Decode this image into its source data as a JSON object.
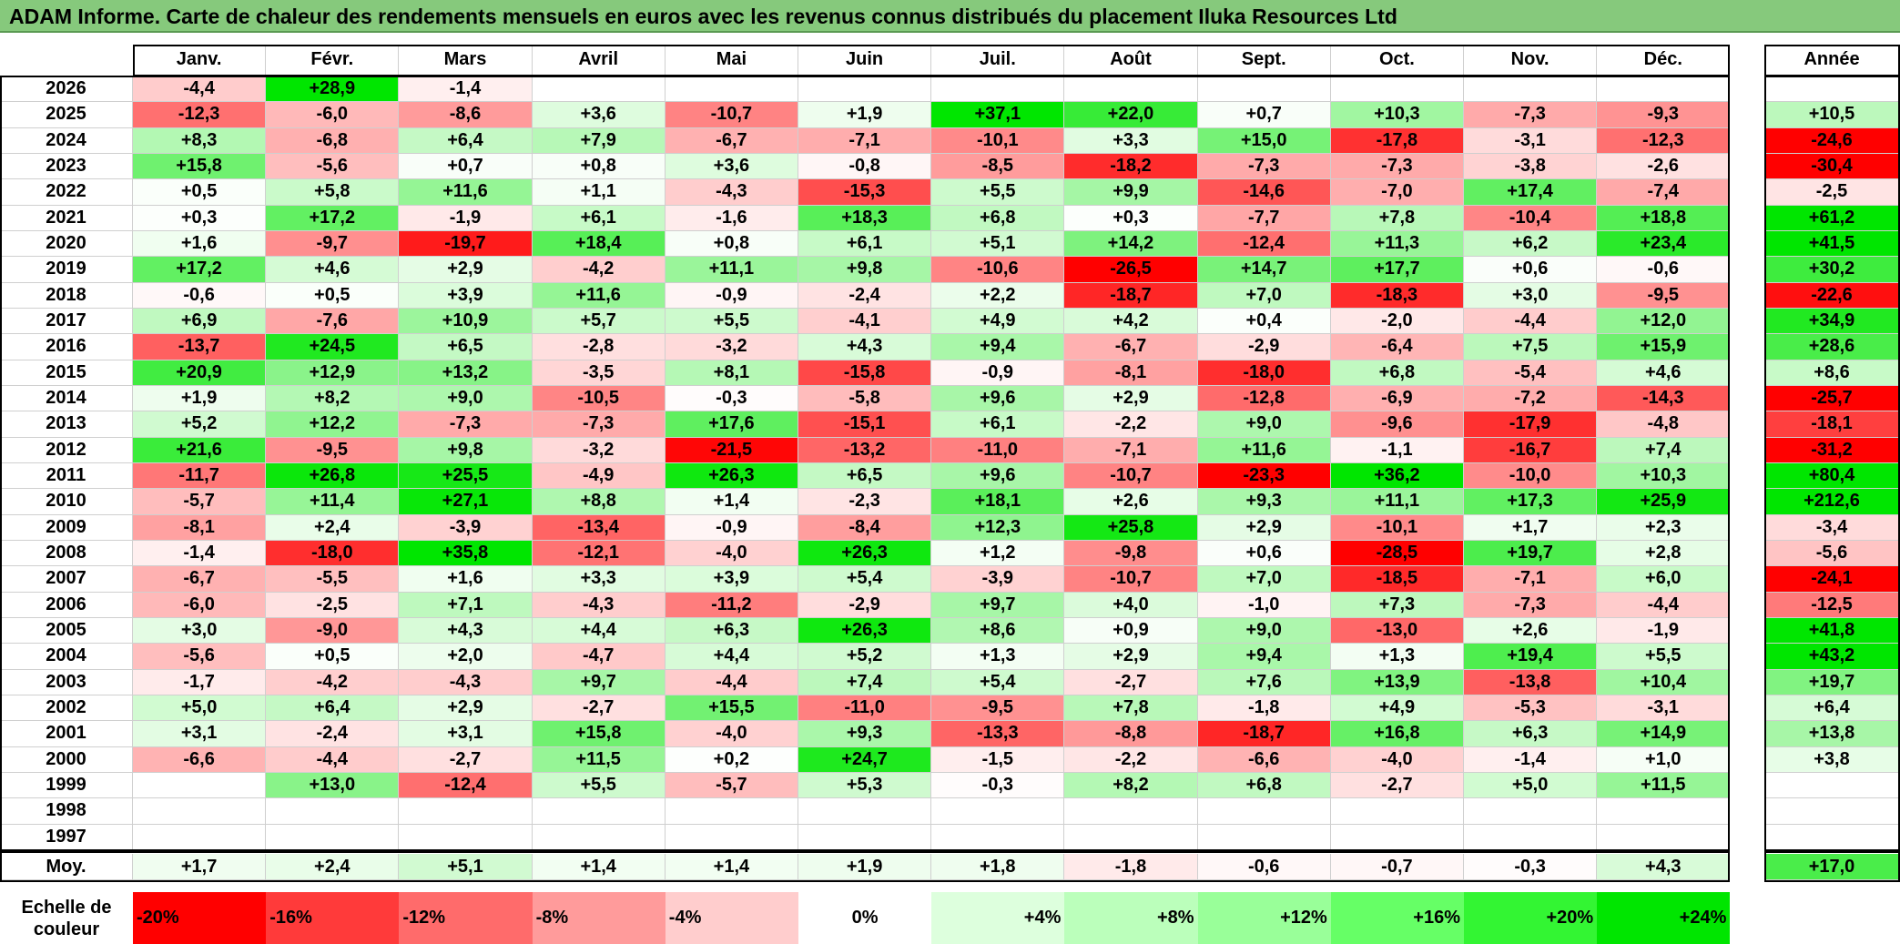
{
  "title": "ADAM Informe. Carte de chaleur des rendements mensuels en euros avec les revenus connus distribués du placement Iluka Resources Ltd",
  "chart_data": {
    "type": "heatmap",
    "months": [
      "Janv.",
      "Févr.",
      "Mars",
      "Avril",
      "Mai",
      "Juin",
      "Juil.",
      "Août",
      "Sept.",
      "Oct.",
      "Nov.",
      "Déc."
    ],
    "year_header": "Année",
    "rows": [
      {
        "year": "2026",
        "values": [
          -4.4,
          28.9,
          -1.4,
          null,
          null,
          null,
          null,
          null,
          null,
          null,
          null,
          null
        ],
        "labels": [
          "-4,4",
          "+28,9",
          "-1,4",
          "",
          "",
          "",
          "",
          "",
          "",
          "",
          "",
          ""
        ],
        "annual": null,
        "annual_label": ""
      },
      {
        "year": "2025",
        "values": [
          -12.3,
          -6.0,
          -8.6,
          3.6,
          -10.7,
          1.9,
          37.1,
          22.0,
          0.7,
          10.3,
          -7.3,
          -9.3
        ],
        "labels": [
          "-12,3",
          "-6,0",
          "-8,6",
          "+3,6",
          "-10,7",
          "+1,9",
          "+37,1",
          "+22,0",
          "+0,7",
          "+10,3",
          "-7,3",
          "-9,3"
        ],
        "annual": 10.5,
        "annual_label": "+10,5"
      },
      {
        "year": "2024",
        "values": [
          8.3,
          -6.8,
          6.4,
          7.9,
          -6.7,
          -7.1,
          -10.1,
          3.3,
          15.0,
          -17.8,
          -3.1,
          -12.3
        ],
        "labels": [
          "+8,3",
          "-6,8",
          "+6,4",
          "+7,9",
          "-6,7",
          "-7,1",
          "-10,1",
          "+3,3",
          "+15,0",
          "-17,8",
          "-3,1",
          "-12,3"
        ],
        "annual": -24.6,
        "annual_label": "-24,6"
      },
      {
        "year": "2023",
        "values": [
          15.8,
          -5.6,
          0.7,
          0.8,
          3.6,
          -0.8,
          -8.5,
          -18.2,
          -7.3,
          -7.3,
          -3.8,
          -2.6
        ],
        "labels": [
          "+15,8",
          "-5,6",
          "+0,7",
          "+0,8",
          "+3,6",
          "-0,8",
          "-8,5",
          "-18,2",
          "-7,3",
          "-7,3",
          "-3,8",
          "-2,6"
        ],
        "annual": -30.4,
        "annual_label": "-30,4"
      },
      {
        "year": "2022",
        "values": [
          0.5,
          5.8,
          11.6,
          1.1,
          -4.3,
          -15.3,
          5.5,
          9.9,
          -14.6,
          -7.0,
          17.4,
          -7.4
        ],
        "labels": [
          "+0,5",
          "+5,8",
          "+11,6",
          "+1,1",
          "-4,3",
          "-15,3",
          "+5,5",
          "+9,9",
          "-14,6",
          "-7,0",
          "+17,4",
          "-7,4"
        ],
        "annual": -2.5,
        "annual_label": "-2,5"
      },
      {
        "year": "2021",
        "values": [
          0.3,
          17.2,
          -1.9,
          6.1,
          -1.6,
          18.3,
          6.8,
          0.3,
          -7.7,
          7.8,
          -10.4,
          18.8
        ],
        "labels": [
          "+0,3",
          "+17,2",
          "-1,9",
          "+6,1",
          "-1,6",
          "+18,3",
          "+6,8",
          "+0,3",
          "-7,7",
          "+7,8",
          "-10,4",
          "+18,8"
        ],
        "annual": 61.2,
        "annual_label": "+61,2"
      },
      {
        "year": "2020",
        "values": [
          1.6,
          -9.7,
          -19.7,
          18.4,
          0.8,
          6.1,
          5.1,
          14.2,
          -12.4,
          11.3,
          6.2,
          23.4
        ],
        "labels": [
          "+1,6",
          "-9,7",
          "-19,7",
          "+18,4",
          "+0,8",
          "+6,1",
          "+5,1",
          "+14,2",
          "-12,4",
          "+11,3",
          "+6,2",
          "+23,4"
        ],
        "annual": 41.5,
        "annual_label": "+41,5"
      },
      {
        "year": "2019",
        "values": [
          17.2,
          4.6,
          2.9,
          -4.2,
          11.1,
          9.8,
          -10.6,
          -26.5,
          14.7,
          17.7,
          0.6,
          -0.6
        ],
        "labels": [
          "+17,2",
          "+4,6",
          "+2,9",
          "-4,2",
          "+11,1",
          "+9,8",
          "-10,6",
          "-26,5",
          "+14,7",
          "+17,7",
          "+0,6",
          "-0,6"
        ],
        "annual": 30.2,
        "annual_label": "+30,2"
      },
      {
        "year": "2018",
        "values": [
          -0.6,
          0.5,
          3.9,
          11.6,
          -0.9,
          -2.4,
          2.2,
          -18.7,
          7.0,
          -18.3,
          3.0,
          -9.5
        ],
        "labels": [
          "-0,6",
          "+0,5",
          "+3,9",
          "+11,6",
          "-0,9",
          "-2,4",
          "+2,2",
          "-18,7",
          "+7,0",
          "-18,3",
          "+3,0",
          "-9,5"
        ],
        "annual": -22.6,
        "annual_label": "-22,6"
      },
      {
        "year": "2017",
        "values": [
          6.9,
          -7.6,
          10.9,
          5.7,
          5.5,
          -4.1,
          4.9,
          4.2,
          0.4,
          -2.0,
          -4.4,
          12.0
        ],
        "labels": [
          "+6,9",
          "-7,6",
          "+10,9",
          "+5,7",
          "+5,5",
          "-4,1",
          "+4,9",
          "+4,2",
          "+0,4",
          "-2,0",
          "-4,4",
          "+12,0"
        ],
        "annual": 34.9,
        "annual_label": "+34,9"
      },
      {
        "year": "2016",
        "values": [
          -13.7,
          24.5,
          6.5,
          -2.8,
          -3.2,
          4.3,
          9.4,
          -6.7,
          -2.9,
          -6.4,
          7.5,
          15.9
        ],
        "labels": [
          "-13,7",
          "+24,5",
          "+6,5",
          "-2,8",
          "-3,2",
          "+4,3",
          "+9,4",
          "-6,7",
          "-2,9",
          "-6,4",
          "+7,5",
          "+15,9"
        ],
        "annual": 28.6,
        "annual_label": "+28,6"
      },
      {
        "year": "2015",
        "values": [
          20.9,
          12.9,
          13.2,
          -3.5,
          8.1,
          -15.8,
          -0.9,
          -8.1,
          -18.0,
          6.8,
          -5.4,
          4.6
        ],
        "labels": [
          "+20,9",
          "+12,9",
          "+13,2",
          "-3,5",
          "+8,1",
          "-15,8",
          "-0,9",
          "-8,1",
          "-18,0",
          "+6,8",
          "-5,4",
          "+4,6"
        ],
        "annual": 8.6,
        "annual_label": "+8,6"
      },
      {
        "year": "2014",
        "values": [
          1.9,
          8.2,
          9.0,
          -10.5,
          -0.3,
          -5.8,
          9.6,
          2.9,
          -12.8,
          -6.9,
          -7.2,
          -14.3
        ],
        "labels": [
          "+1,9",
          "+8,2",
          "+9,0",
          "-10,5",
          "-0,3",
          "-5,8",
          "+9,6",
          "+2,9",
          "-12,8",
          "-6,9",
          "-7,2",
          "-14,3"
        ],
        "annual": -25.7,
        "annual_label": "-25,7"
      },
      {
        "year": "2013",
        "values": [
          5.2,
          12.2,
          -7.3,
          -7.3,
          17.6,
          -15.1,
          6.1,
          -2.2,
          9.0,
          -9.6,
          -17.9,
          -4.8
        ],
        "labels": [
          "+5,2",
          "+12,2",
          "-7,3",
          "-7,3",
          "+17,6",
          "-15,1",
          "+6,1",
          "-2,2",
          "+9,0",
          "-9,6",
          "-17,9",
          "-4,8"
        ],
        "annual": -18.1,
        "annual_label": "-18,1"
      },
      {
        "year": "2012",
        "values": [
          21.6,
          -9.5,
          9.8,
          -3.2,
          -21.5,
          -13.2,
          -11.0,
          -7.1,
          11.6,
          -1.1,
          -16.7,
          7.4
        ],
        "labels": [
          "+21,6",
          "-9,5",
          "+9,8",
          "-3,2",
          "-21,5",
          "-13,2",
          "-11,0",
          "-7,1",
          "+11,6",
          "-1,1",
          "-16,7",
          "+7,4"
        ],
        "annual": -31.2,
        "annual_label": "-31,2"
      },
      {
        "year": "2011",
        "values": [
          -11.7,
          26.8,
          25.5,
          -4.9,
          26.3,
          6.5,
          9.6,
          -10.7,
          -23.3,
          36.2,
          -10.0,
          10.3
        ],
        "labels": [
          "-11,7",
          "+26,8",
          "+25,5",
          "-4,9",
          "+26,3",
          "+6,5",
          "+9,6",
          "-10,7",
          "-23,3",
          "+36,2",
          "-10,0",
          "+10,3"
        ],
        "annual": 80.4,
        "annual_label": "+80,4"
      },
      {
        "year": "2010",
        "values": [
          -5.7,
          11.4,
          27.1,
          8.8,
          1.4,
          -2.3,
          18.1,
          2.6,
          9.3,
          11.1,
          17.3,
          25.9
        ],
        "labels": [
          "-5,7",
          "+11,4",
          "+27,1",
          "+8,8",
          "+1,4",
          "-2,3",
          "+18,1",
          "+2,6",
          "+9,3",
          "+11,1",
          "+17,3",
          "+25,9"
        ],
        "annual": 212.6,
        "annual_label": "+212,6"
      },
      {
        "year": "2009",
        "values": [
          -8.1,
          2.4,
          -3.9,
          -13.4,
          -0.9,
          -8.4,
          12.3,
          25.8,
          2.9,
          -10.1,
          1.7,
          2.3
        ],
        "labels": [
          "-8,1",
          "+2,4",
          "-3,9",
          "-13,4",
          "-0,9",
          "-8,4",
          "+12,3",
          "+25,8",
          "+2,9",
          "-10,1",
          "+1,7",
          "+2,3"
        ],
        "annual": -3.4,
        "annual_label": "-3,4"
      },
      {
        "year": "2008",
        "values": [
          -1.4,
          -18.0,
          35.8,
          -12.1,
          -4.0,
          26.3,
          1.2,
          -9.8,
          0.6,
          -28.5,
          19.7,
          2.8
        ],
        "labels": [
          "-1,4",
          "-18,0",
          "+35,8",
          "-12,1",
          "-4,0",
          "+26,3",
          "+1,2",
          "-9,8",
          "+0,6",
          "-28,5",
          "+19,7",
          "+2,8"
        ],
        "annual": -5.6,
        "annual_label": "-5,6"
      },
      {
        "year": "2007",
        "values": [
          -6.7,
          -5.5,
          1.6,
          3.3,
          3.9,
          5.4,
          -3.9,
          -10.7,
          7.0,
          -18.5,
          -7.1,
          6.0
        ],
        "labels": [
          "-6,7",
          "-5,5",
          "+1,6",
          "+3,3",
          "+3,9",
          "+5,4",
          "-3,9",
          "-10,7",
          "+7,0",
          "-18,5",
          "-7,1",
          "+6,0"
        ],
        "annual": -24.1,
        "annual_label": "-24,1"
      },
      {
        "year": "2006",
        "values": [
          -6.0,
          -2.5,
          7.1,
          -4.3,
          -11.2,
          -2.9,
          9.7,
          4.0,
          -1.0,
          7.3,
          -7.3,
          -4.4
        ],
        "labels": [
          "-6,0",
          "-2,5",
          "+7,1",
          "-4,3",
          "-11,2",
          "-2,9",
          "+9,7",
          "+4,0",
          "-1,0",
          "+7,3",
          "-7,3",
          "-4,4"
        ],
        "annual": -12.5,
        "annual_label": "-12,5"
      },
      {
        "year": "2005",
        "values": [
          3.0,
          -9.0,
          4.3,
          4.4,
          6.3,
          26.3,
          8.6,
          0.9,
          9.0,
          -13.0,
          2.6,
          -1.9
        ],
        "labels": [
          "+3,0",
          "-9,0",
          "+4,3",
          "+4,4",
          "+6,3",
          "+26,3",
          "+8,6",
          "+0,9",
          "+9,0",
          "-13,0",
          "+2,6",
          "-1,9"
        ],
        "annual": 41.8,
        "annual_label": "+41,8"
      },
      {
        "year": "2004",
        "values": [
          -5.6,
          0.5,
          2.0,
          -4.7,
          4.4,
          5.2,
          1.3,
          2.9,
          9.4,
          1.3,
          19.4,
          5.5
        ],
        "labels": [
          "-5,6",
          "+0,5",
          "+2,0",
          "-4,7",
          "+4,4",
          "+5,2",
          "+1,3",
          "+2,9",
          "+9,4",
          "+1,3",
          "+19,4",
          "+5,5"
        ],
        "annual": 43.2,
        "annual_label": "+43,2"
      },
      {
        "year": "2003",
        "values": [
          -1.7,
          -4.2,
          -4.3,
          9.7,
          -4.4,
          7.4,
          5.4,
          -2.7,
          7.6,
          13.9,
          -13.8,
          10.4
        ],
        "labels": [
          "-1,7",
          "-4,2",
          "-4,3",
          "+9,7",
          "-4,4",
          "+7,4",
          "+5,4",
          "-2,7",
          "+7,6",
          "+13,9",
          "-13,8",
          "+10,4"
        ],
        "annual": 19.7,
        "annual_label": "+19,7"
      },
      {
        "year": "2002",
        "values": [
          5.0,
          6.4,
          2.9,
          -2.7,
          15.5,
          -11.0,
          -9.5,
          7.8,
          -1.8,
          4.9,
          -5.3,
          -3.1
        ],
        "labels": [
          "+5,0",
          "+6,4",
          "+2,9",
          "-2,7",
          "+15,5",
          "-11,0",
          "-9,5",
          "+7,8",
          "-1,8",
          "+4,9",
          "-5,3",
          "-3,1"
        ],
        "annual": 6.4,
        "annual_label": "+6,4"
      },
      {
        "year": "2001",
        "values": [
          3.1,
          -2.4,
          3.1,
          15.8,
          -4.0,
          9.3,
          -13.3,
          -8.8,
          -18.7,
          16.8,
          6.3,
          14.9
        ],
        "labels": [
          "+3,1",
          "-2,4",
          "+3,1",
          "+15,8",
          "-4,0",
          "+9,3",
          "-13,3",
          "-8,8",
          "-18,7",
          "+16,8",
          "+6,3",
          "+14,9"
        ],
        "annual": 13.8,
        "annual_label": "+13,8"
      },
      {
        "year": "2000",
        "values": [
          -6.6,
          -4.4,
          -2.7,
          11.5,
          0.2,
          24.7,
          -1.5,
          -2.2,
          -6.6,
          -4.0,
          -1.4,
          1.0
        ],
        "labels": [
          "-6,6",
          "-4,4",
          "-2,7",
          "+11,5",
          "+0,2",
          "+24,7",
          "-1,5",
          "-2,2",
          "-6,6",
          "-4,0",
          "-1,4",
          "+1,0"
        ],
        "annual": 3.8,
        "annual_label": "+3,8"
      },
      {
        "year": "1999",
        "values": [
          null,
          13.0,
          -12.4,
          5.5,
          -5.7,
          5.3,
          -0.3,
          8.2,
          6.8,
          -2.7,
          5.0,
          11.5
        ],
        "labels": [
          "",
          "+13,0",
          "-12,4",
          "+5,5",
          "-5,7",
          "+5,3",
          "-0,3",
          "+8,2",
          "+6,8",
          "-2,7",
          "+5,0",
          "+11,5"
        ],
        "annual": null,
        "annual_label": ""
      },
      {
        "year": "1998",
        "values": [
          null,
          null,
          null,
          null,
          null,
          null,
          null,
          null,
          null,
          null,
          null,
          null
        ],
        "labels": [
          "",
          "",
          "",
          "",
          "",
          "",
          "",
          "",
          "",
          "",
          "",
          ""
        ],
        "annual": null,
        "annual_label": ""
      },
      {
        "year": "1997",
        "values": [
          null,
          null,
          null,
          null,
          null,
          null,
          null,
          null,
          null,
          null,
          null,
          null
        ],
        "labels": [
          "",
          "",
          "",
          "",
          "",
          "",
          "",
          "",
          "",
          "",
          "",
          ""
        ],
        "annual": null,
        "annual_label": ""
      }
    ],
    "average": {
      "label": "Moy.",
      "values": [
        1.7,
        2.4,
        5.1,
        1.4,
        1.4,
        1.9,
        1.8,
        -1.8,
        -0.6,
        -0.7,
        -0.3,
        4.3
      ],
      "labels": [
        "+1,7",
        "+2,4",
        "+5,1",
        "+1,4",
        "+1,4",
        "+1,9",
        "+1,8",
        "-1,8",
        "-0,6",
        "-0,7",
        "-0,3",
        "+4,3"
      ],
      "annual": 17.0,
      "annual_label": "+17,0"
    },
    "color_scale": {
      "label": "Echelle de couleur",
      "stops": [
        -20,
        -16,
        -12,
        -8,
        -4,
        0,
        4,
        8,
        12,
        16,
        20,
        24
      ],
      "labels": [
        "-20%",
        "-16%",
        "-12%",
        "-8%",
        "-4%",
        "0%",
        "+4%",
        "+8%",
        "+12%",
        "+16%",
        "+20%",
        "+24%"
      ],
      "colors": [
        "#ff0000",
        "#ff3a3a",
        "#ff6b6b",
        "#ff9b9b",
        "#ffcdcd",
        "#ffffff",
        "#ddffdd",
        "#bbffbb",
        "#99ff99",
        "#66ff66",
        "#33f533",
        "#00e600"
      ]
    },
    "colors": {
      "negative_max": "#ff0000",
      "neutral": "#ffffff",
      "positive_max": "#00e600"
    }
  }
}
